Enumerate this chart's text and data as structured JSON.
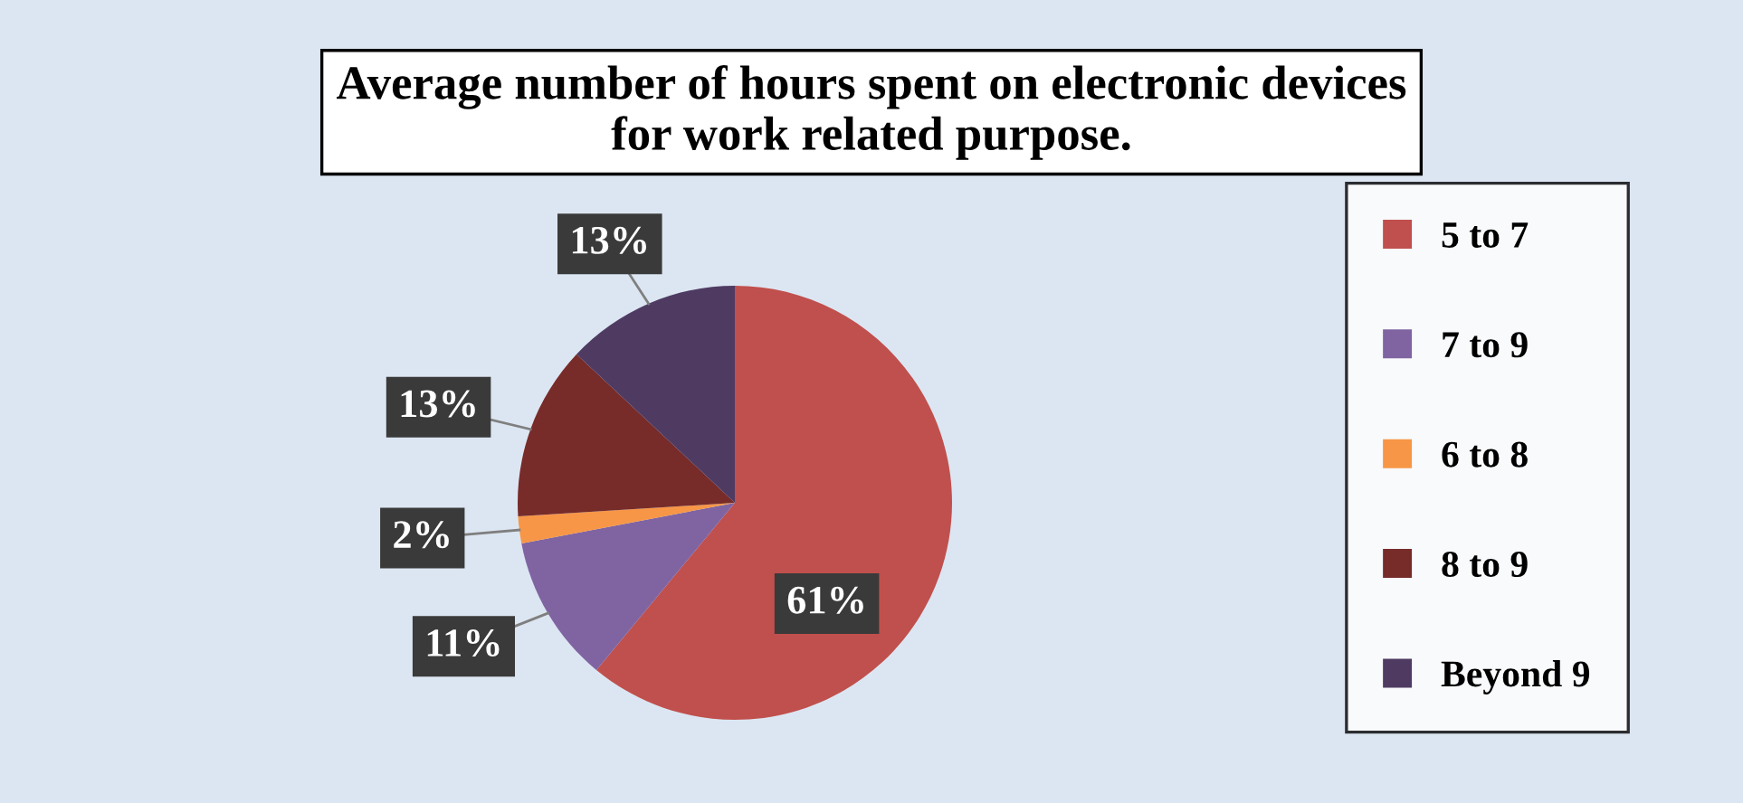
{
  "chart_data": {
    "type": "pie",
    "title": "Average number of hours spent on electronic devices\nfor work related purpose.",
    "categories": [
      "5 to 7",
      "7 to 9",
      "6 to 8",
      "8 to 9",
      "Beyond 9"
    ],
    "values": [
      61,
      11,
      2,
      13,
      13
    ],
    "colors": [
      "#c0504d",
      "#8064a2",
      "#f79646",
      "#772c2a",
      "#4f3b62"
    ],
    "value_labels": [
      "61%",
      "11%",
      "2%",
      "13%",
      "13%"
    ],
    "legend": "right"
  }
}
